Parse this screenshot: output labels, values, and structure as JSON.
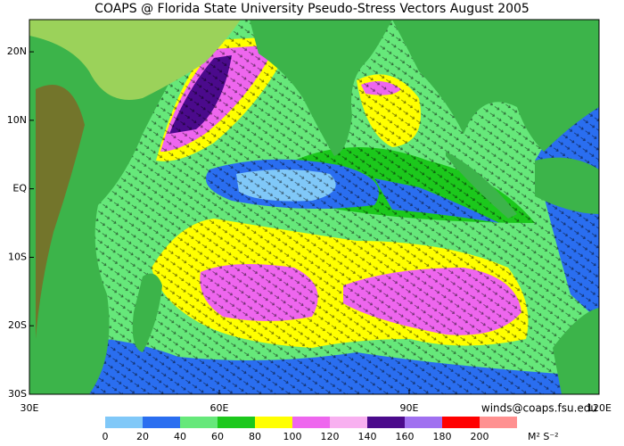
{
  "header": {
    "title": "COAPS @ Florida State University Pseudo-Stress Vectors August 2005"
  },
  "map": {
    "lon_range": [
      30,
      120
    ],
    "lat_range": [
      -30,
      24.7
    ],
    "lon_ticks": [
      {
        "value": 30,
        "label": "30E"
      },
      {
        "value": 60,
        "label": "60E"
      },
      {
        "value": 90,
        "label": "90E"
      },
      {
        "value": 120,
        "label": "120E"
      }
    ],
    "lat_ticks": [
      {
        "value": 20,
        "label": "20N"
      },
      {
        "value": 10,
        "label": "10N"
      },
      {
        "value": 0,
        "label": "EQ"
      },
      {
        "value": -10,
        "label": "10S"
      },
      {
        "value": -20,
        "label": "20S"
      },
      {
        "value": -30,
        "label": "30S"
      }
    ]
  },
  "colorbar": {
    "levels": [
      0,
      20,
      40,
      60,
      80,
      100,
      120,
      140,
      160,
      180,
      200
    ],
    "colors": [
      "#80c8f8",
      "#2a6ef0",
      "#66e87a",
      "#1cc81c",
      "#ffff00",
      "#ee66ee",
      "#f8b0f0",
      "#4b0a8c",
      "#a070f0",
      "#ff0000",
      "#ff9090"
    ],
    "units": "M² S⁻²"
  },
  "footer": {
    "contact": "winds@coaps.fsu.edu"
  }
}
